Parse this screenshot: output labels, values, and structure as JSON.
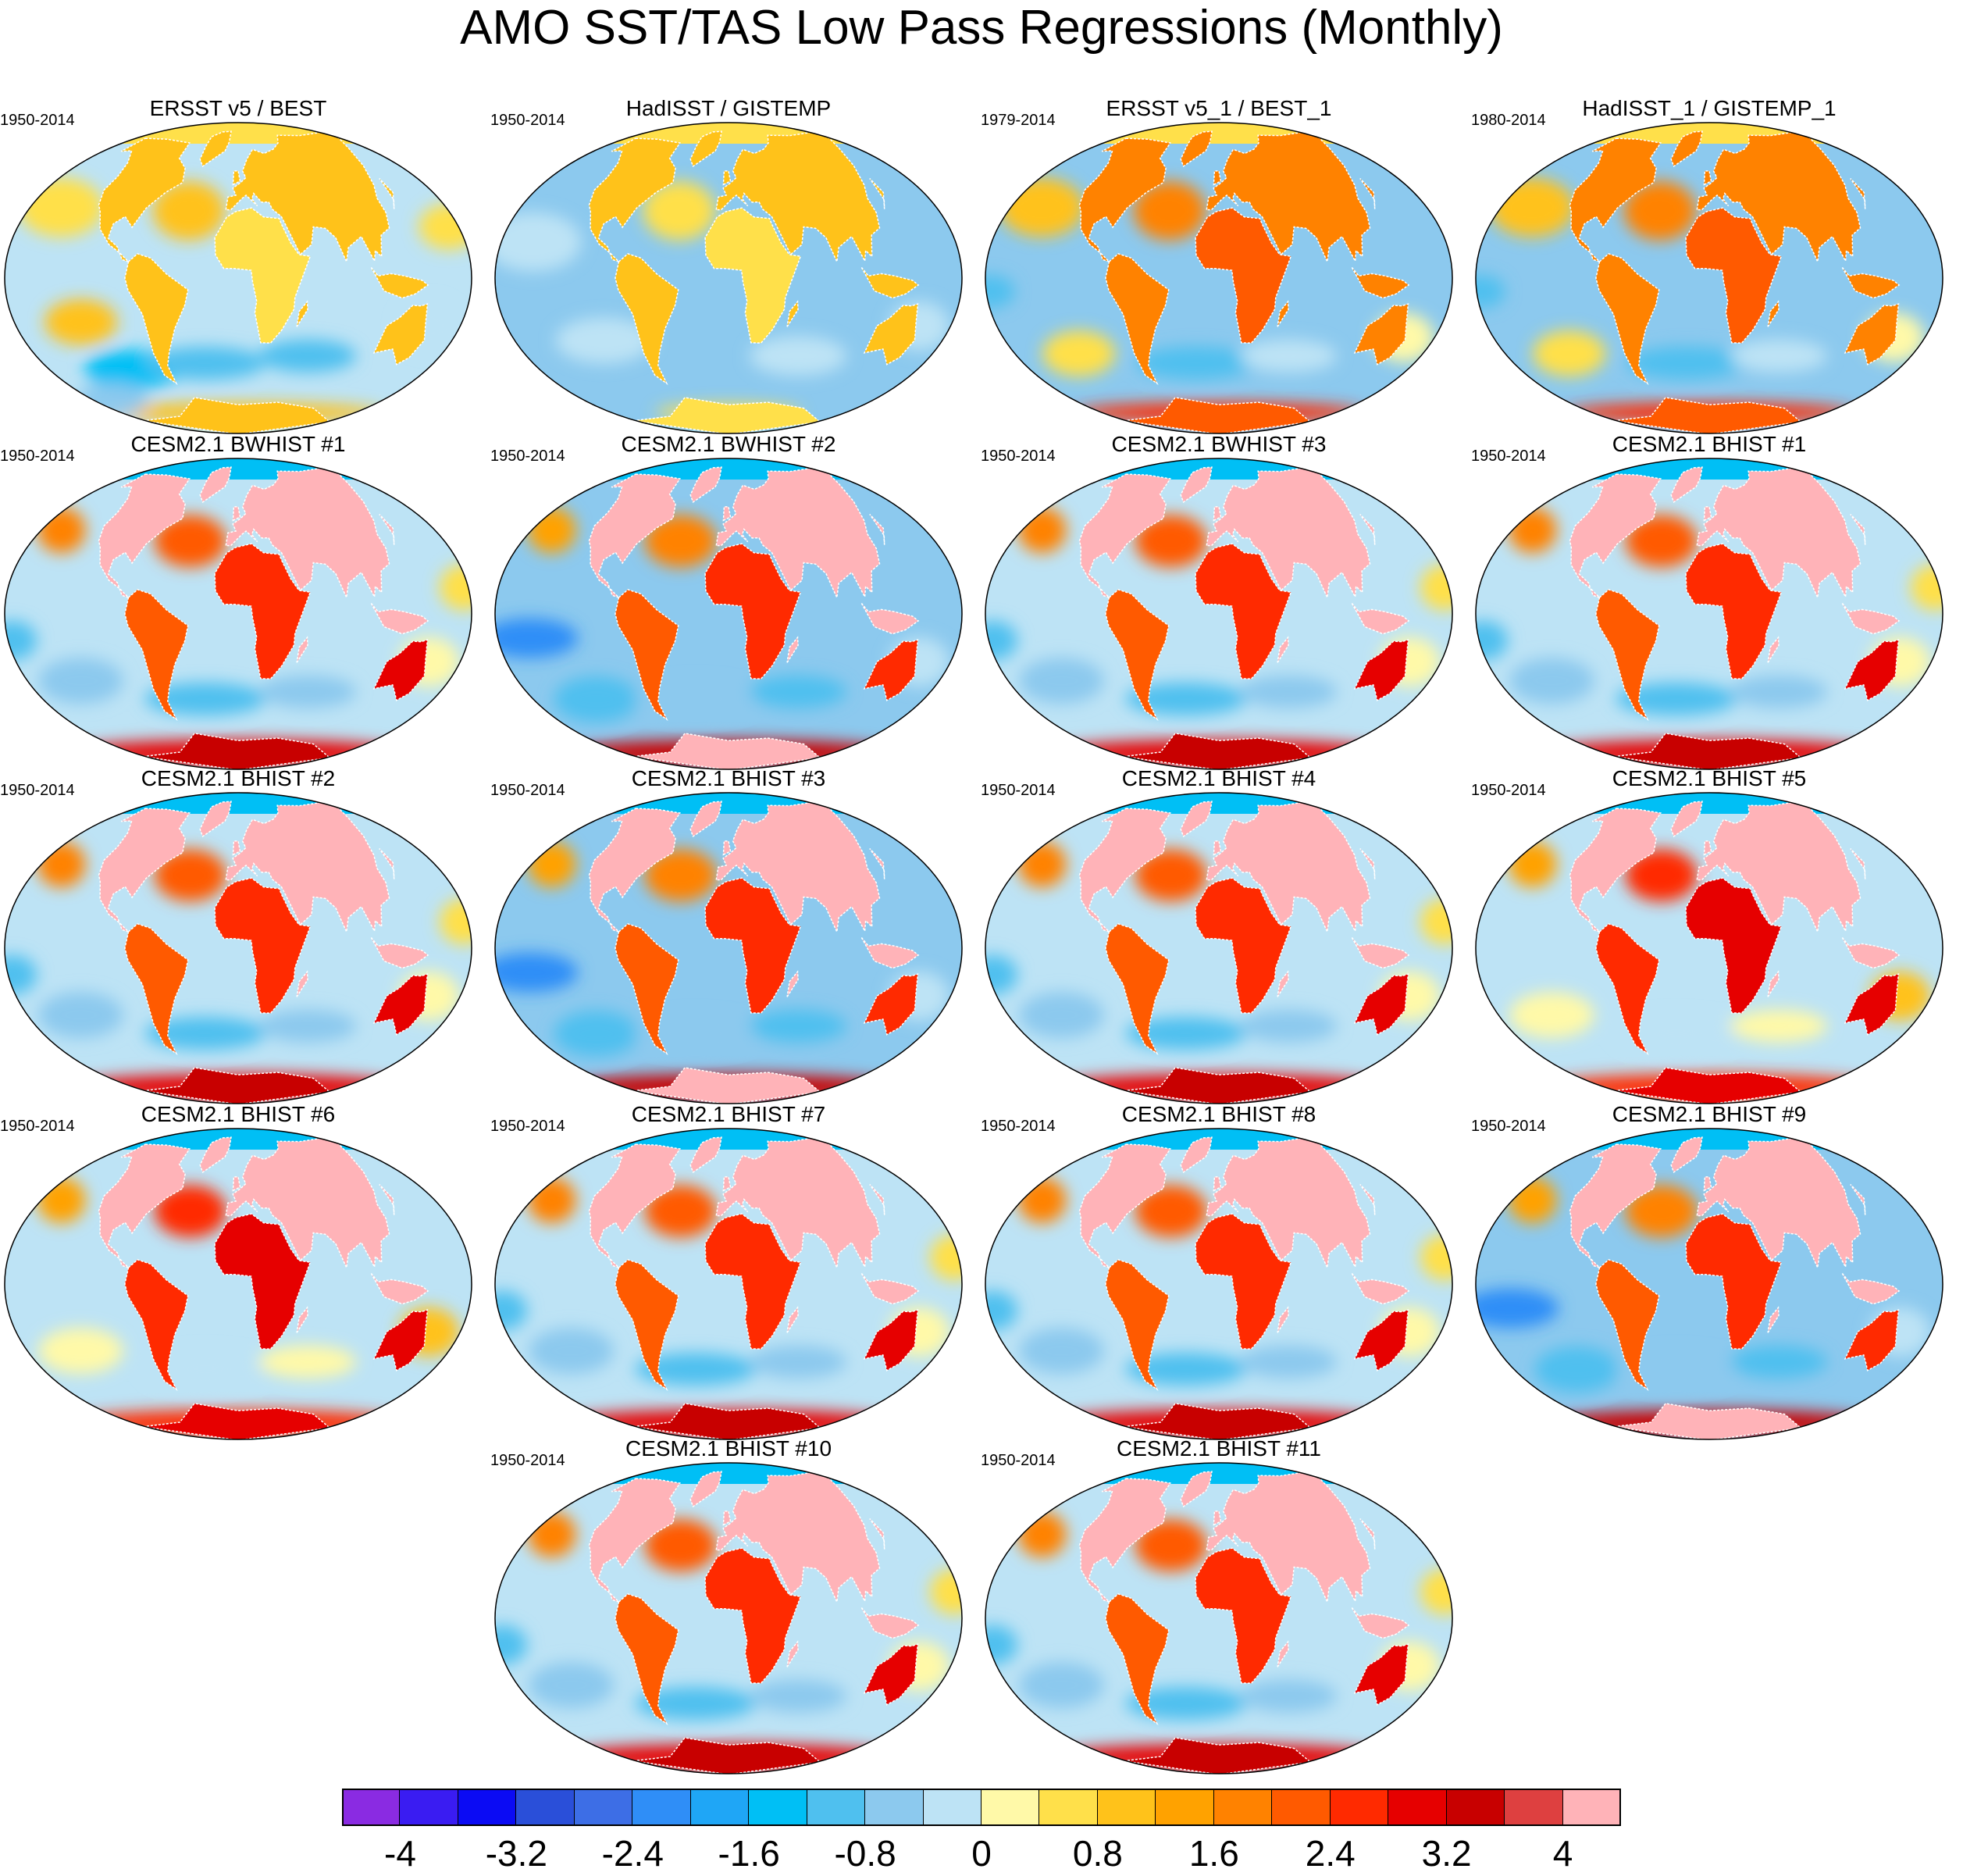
{
  "title": "AMO SST/TAS Low Pass Regressions (Monthly)",
  "panels": [
    {
      "title": "ERSST v5 / BEST",
      "period": "1950-2014",
      "pattern": "obs"
    },
    {
      "title": "HadISST / GISTEMP",
      "period": "1950-2014",
      "pattern": "obs_mild"
    },
    {
      "title": "ERSST v5_1 / BEST_1",
      "period": "1979-2014",
      "pattern": "obs_warm"
    },
    {
      "title": "HadISST_1 / GISTEMP_1",
      "period": "1980-2014",
      "pattern": "obs_warm"
    },
    {
      "title": "CESM2.1 BWHIST #1",
      "period": "1950-2014",
      "pattern": "model"
    },
    {
      "title": "CESM2.1 BWHIST #2",
      "period": "1950-2014",
      "pattern": "model_cool"
    },
    {
      "title": "CESM2.1 BWHIST #3",
      "period": "1950-2014",
      "pattern": "model"
    },
    {
      "title": "CESM2.1 BHIST #1",
      "period": "1950-2014",
      "pattern": "model"
    },
    {
      "title": "CESM2.1 BHIST #2",
      "period": "1950-2014",
      "pattern": "model"
    },
    {
      "title": "CESM2.1 BHIST #3",
      "period": "1950-2014",
      "pattern": "model_cool"
    },
    {
      "title": "CESM2.1 BHIST #4",
      "period": "1950-2014",
      "pattern": "model"
    },
    {
      "title": "CESM2.1 BHIST #5",
      "period": "1950-2014",
      "pattern": "model_warm"
    },
    {
      "title": "CESM2.1 BHIST #6",
      "period": "1950-2014",
      "pattern": "model_warm"
    },
    {
      "title": "CESM2.1 BHIST #7",
      "period": "1950-2014",
      "pattern": "model"
    },
    {
      "title": "CESM2.1 BHIST #8",
      "period": "1950-2014",
      "pattern": "model"
    },
    {
      "title": "CESM2.1 BHIST #9",
      "period": "1950-2014",
      "pattern": "model_cool"
    },
    {
      "title": "CESM2.1 BHIST #10",
      "period": "1950-2014",
      "pattern": "model"
    },
    {
      "title": "CESM2.1 BHIST #11",
      "period": "1950-2014",
      "pattern": "model"
    }
  ],
  "colorbar": {
    "colors": [
      "#8a2be2",
      "#3a1cf2",
      "#0b0bf4",
      "#2a4fd9",
      "#3d6ee6",
      "#2f8ef7",
      "#1fa6f6",
      "#00bff5",
      "#4fc0ef",
      "#8cc9ee",
      "#bde3f5",
      "#fff9a8",
      "#ffe04a",
      "#ffc21a",
      "#ffa200",
      "#ff8200",
      "#ff5a00",
      "#ff2a00",
      "#e60000",
      "#c80000",
      "#de4040",
      "#ffb3b8"
    ],
    "labels": [
      "-4",
      "-3.2",
      "-2.4",
      "-1.6",
      "-0.8",
      "0",
      "0.8",
      "1.6",
      "2.4",
      "3.2",
      "4"
    ],
    "label_positions": [
      1,
      3,
      5,
      7,
      9,
      11,
      13,
      15,
      17,
      19,
      21
    ]
  }
}
